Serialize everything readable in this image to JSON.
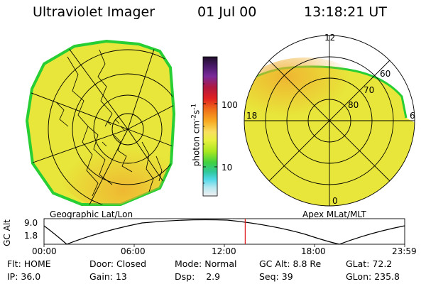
{
  "header": {
    "title": "Ultraviolet Imager",
    "date": "01 Jul 00",
    "time": "13:18:21 UT"
  },
  "colors": {
    "background": "#ffffff",
    "image_fill": "#e8e63a",
    "image_edge": "#28cf34",
    "image_hot": "#f0b030",
    "track_marker": "#e01818"
  },
  "geo_panel": {
    "label": "Geographic Lat/Lon"
  },
  "polar_panel": {
    "label": "Apex MLat/MLT",
    "mlt_labels": [
      "12",
      "18",
      "6",
      "0"
    ],
    "mlat_labels": [
      "60",
      "70",
      "80"
    ]
  },
  "colorbar": {
    "unit_label": "photon cm",
    "unit_sup1": "-2",
    "unit_mid": "s",
    "unit_sup2": "-1",
    "tick_labels": [
      "100",
      "10"
    ],
    "colors_top_to_bottom": [
      "#1e0e28",
      "#4a1a6a",
      "#7a2a9a",
      "#b01840",
      "#e02020",
      "#f0701a",
      "#f8a820",
      "#f8e060",
      "#e8f040",
      "#a8e820",
      "#40d040",
      "#30c8a0",
      "#50d8e8",
      "#b8e8f0",
      "#f0f0f0"
    ]
  },
  "altitude_plot": {
    "ylabel": "GC Alt",
    "y_ticks": [
      "9.0",
      "1.8"
    ],
    "x_ticks": [
      "00:00",
      "06:00",
      "12:00",
      "18:00",
      "23:59"
    ],
    "current_time_fraction": 0.5578
  },
  "info": {
    "flt_label": "Flt:",
    "flt_value": "HOME",
    "ip_label": "IP:",
    "ip_value": "36.0",
    "door_label": "Door:",
    "door_value": "Closed",
    "gain_label": "Gain:",
    "gain_value": "13",
    "mode_label": "Mode:",
    "mode_value": "Normal",
    "dsp_label": "Dsp:",
    "dsp_value": "2.9",
    "gcalt_label": "GC Alt:",
    "gcalt_value": "8.8 Re",
    "seq_label": "Seq:",
    "seq_value": "39",
    "glat_label": "GLat:",
    "glat_value": "72.2",
    "glon_label": "GLon:",
    "glon_value": "235.8"
  }
}
